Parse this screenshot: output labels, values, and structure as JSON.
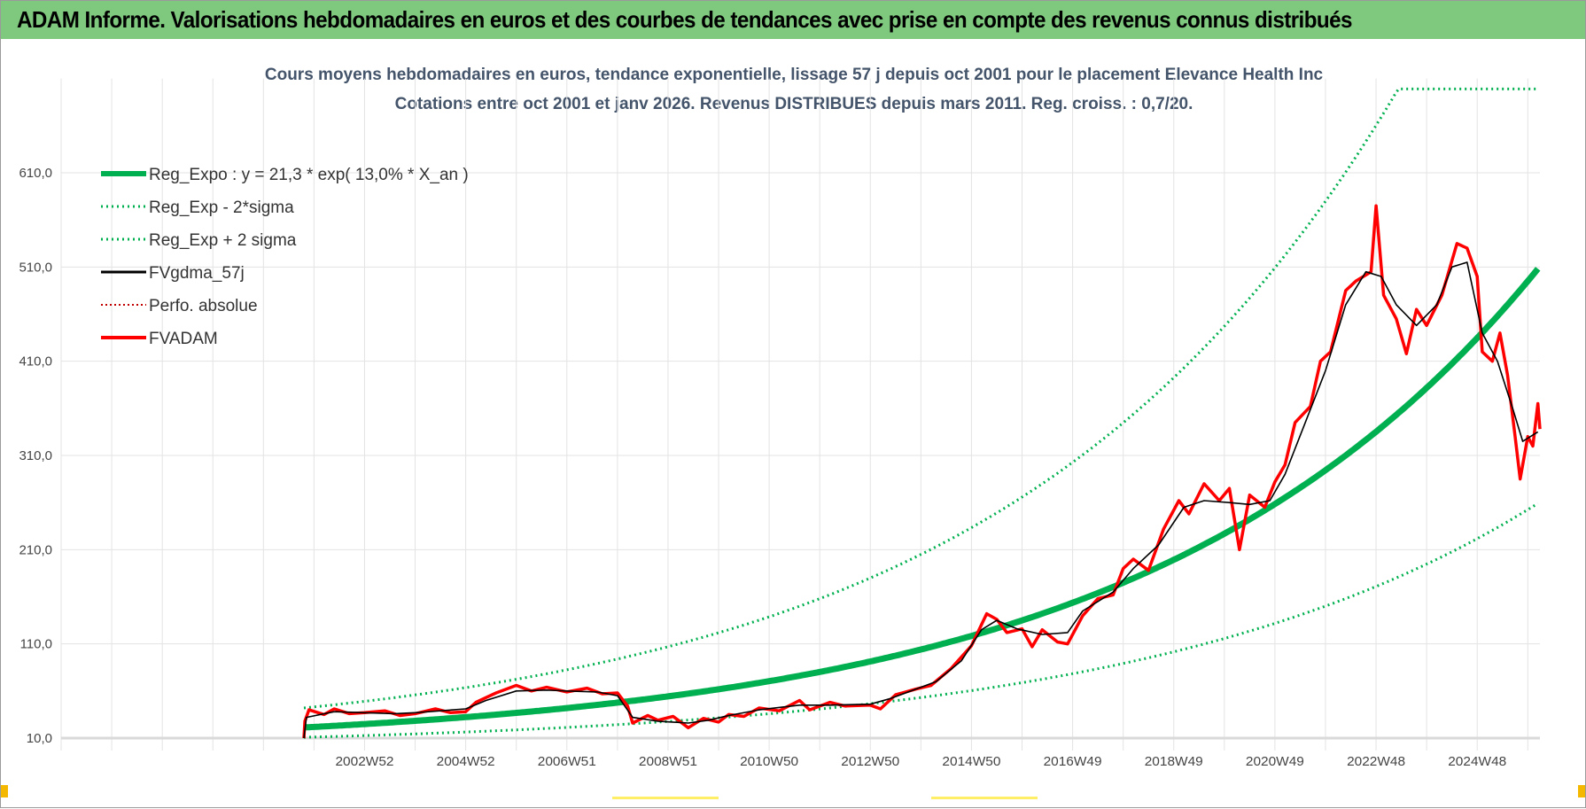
{
  "header": {
    "title": "ADAM Informe. Valorisations hebdomadaires en euros et des courbes de tendances avec prise en compte des revenus connus distribués"
  },
  "chart_data": {
    "type": "line",
    "title": [
      "Cours moyens hebdomadaires en euros, tendance exponentielle, lissage 57 j depuis oct 2001 pour le placement Elevance Health Inc",
      "Cotations entre oct 2001 et janv 2026. Revenus DISTRIBUES depuis mars 2011. Reg. croiss. : 0,7/20."
    ],
    "xlabel": "",
    "ylabel": "",
    "xlim": [
      1997.0,
      2026.24
    ],
    "ylim": [
      10,
      710
    ],
    "yticks": [
      "10,0",
      "110,0",
      "210,0",
      "310,0",
      "410,0",
      "510,0",
      "610,0"
    ],
    "ytick_values": [
      10,
      110,
      210,
      310,
      410,
      510,
      610
    ],
    "xticks": [
      "2002W52",
      "2004W52",
      "2006W51",
      "2008W51",
      "2010W50",
      "2012W50",
      "2014W50",
      "2016W49",
      "2018W49",
      "2020W49",
      "2022W48",
      "2024W48"
    ],
    "xtick_years": [
      2003,
      2005,
      2007,
      2009,
      2011,
      2013,
      2015,
      2017,
      2019,
      2021,
      2023,
      2025
    ],
    "grid": true,
    "legend_position": "top-left",
    "regression": {
      "a": 21.3,
      "rate": 0.13,
      "start_year": 2001.8,
      "end_year": 2026.2,
      "sigma_factor_low": 0.51,
      "sigma_factor_high": 1.97,
      "cap": 699
    },
    "series": [
      {
        "name": "Reg_Expo : y = 21,3 * exp( 13,0% *  X_an )",
        "color": "#00b050",
        "style": "solid-thick"
      },
      {
        "name": "Reg_Exp - 2*sigma",
        "color": "#00b050",
        "style": "dotted"
      },
      {
        "name": "Reg_Exp + 2 sigma",
        "color": "#00b050",
        "style": "dotted"
      },
      {
        "name": "FVgdma_57j",
        "color": "#000000",
        "style": "solid",
        "points": [
          [
            2001.8,
            10
          ],
          [
            2001.85,
            32
          ],
          [
            2002.4,
            38
          ],
          [
            2003,
            37
          ],
          [
            2003.6,
            36
          ],
          [
            2004,
            37
          ],
          [
            2004.5,
            39
          ],
          [
            2005,
            41
          ],
          [
            2005.4,
            50
          ],
          [
            2006,
            60
          ],
          [
            2006.6,
            61
          ],
          [
            2007,
            60
          ],
          [
            2007.6,
            59
          ],
          [
            2008,
            55
          ],
          [
            2008.3,
            32
          ],
          [
            2008.8,
            28
          ],
          [
            2009.4,
            26
          ],
          [
            2009.8,
            29
          ],
          [
            2010.2,
            34
          ],
          [
            2010.8,
            40
          ],
          [
            2011.6,
            45
          ],
          [
            2012.2,
            45
          ],
          [
            2013,
            46
          ],
          [
            2013.4,
            52
          ],
          [
            2013.9,
            62
          ],
          [
            2014.3,
            70
          ],
          [
            2014.8,
            92
          ],
          [
            2015.2,
            125
          ],
          [
            2015.5,
            135
          ],
          [
            2015.9,
            126
          ],
          [
            2016.4,
            120
          ],
          [
            2016.9,
            122
          ],
          [
            2017.2,
            145
          ],
          [
            2017.8,
            165
          ],
          [
            2018.2,
            190
          ],
          [
            2018.7,
            215
          ],
          [
            2019.2,
            255
          ],
          [
            2019.6,
            262
          ],
          [
            2020.1,
            260
          ],
          [
            2020.5,
            258
          ],
          [
            2020.9,
            262
          ],
          [
            2021.2,
            290
          ],
          [
            2021.6,
            345
          ],
          [
            2022.0,
            400
          ],
          [
            2022.4,
            470
          ],
          [
            2022.8,
            505
          ],
          [
            2023.1,
            500
          ],
          [
            2023.4,
            470
          ],
          [
            2023.8,
            448
          ],
          [
            2024.2,
            470
          ],
          [
            2024.5,
            510
          ],
          [
            2024.8,
            515
          ],
          [
            2025.1,
            440
          ],
          [
            2025.4,
            410
          ],
          [
            2025.7,
            360
          ],
          [
            2025.9,
            325
          ],
          [
            2026.2,
            335
          ]
        ]
      },
      {
        "name": "Perfo. absolue",
        "color": "#c00000",
        "style": "dotted",
        "points": []
      },
      {
        "name": "FVADAM",
        "color": "#ff0000",
        "style": "solid-thick",
        "points": [
          [
            2001.8,
            10
          ],
          [
            2001.82,
            28
          ],
          [
            2001.9,
            40
          ],
          [
            2002.2,
            35
          ],
          [
            2002.4,
            41
          ],
          [
            2002.7,
            36
          ],
          [
            2003,
            37
          ],
          [
            2003.4,
            39
          ],
          [
            2003.7,
            34
          ],
          [
            2004,
            36
          ],
          [
            2004.4,
            41
          ],
          [
            2004.7,
            37
          ],
          [
            2005,
            38
          ],
          [
            2005.2,
            48
          ],
          [
            2005.6,
            58
          ],
          [
            2006,
            66
          ],
          [
            2006.3,
            60
          ],
          [
            2006.6,
            64
          ],
          [
            2007,
            59
          ],
          [
            2007.4,
            63
          ],
          [
            2007.7,
            57
          ],
          [
            2008,
            58
          ],
          [
            2008.2,
            44
          ],
          [
            2008.3,
            26
          ],
          [
            2008.6,
            34
          ],
          [
            2008.8,
            29
          ],
          [
            2009.1,
            33
          ],
          [
            2009.4,
            21
          ],
          [
            2009.7,
            31
          ],
          [
            2010,
            27
          ],
          [
            2010.2,
            35
          ],
          [
            2010.5,
            33
          ],
          [
            2010.8,
            42
          ],
          [
            2011.2,
            39
          ],
          [
            2011.6,
            50
          ],
          [
            2011.8,
            40
          ],
          [
            2012.2,
            48
          ],
          [
            2012.5,
            44
          ],
          [
            2013,
            45
          ],
          [
            2013.2,
            41
          ],
          [
            2013.5,
            56
          ],
          [
            2013.9,
            62
          ],
          [
            2014.2,
            66
          ],
          [
            2014.6,
            84
          ],
          [
            2015,
            108
          ],
          [
            2015.3,
            142
          ],
          [
            2015.5,
            136
          ],
          [
            2015.7,
            122
          ],
          [
            2016.0,
            126
          ],
          [
            2016.2,
            107
          ],
          [
            2016.4,
            125
          ],
          [
            2016.7,
            112
          ],
          [
            2016.9,
            110
          ],
          [
            2017.2,
            140
          ],
          [
            2017.5,
            158
          ],
          [
            2017.8,
            162
          ],
          [
            2018.0,
            190
          ],
          [
            2018.2,
            200
          ],
          [
            2018.5,
            188
          ],
          [
            2018.8,
            232
          ],
          [
            2019.1,
            262
          ],
          [
            2019.3,
            248
          ],
          [
            2019.6,
            280
          ],
          [
            2019.9,
            262
          ],
          [
            2020.1,
            275
          ],
          [
            2020.3,
            210
          ],
          [
            2020.5,
            268
          ],
          [
            2020.8,
            255
          ],
          [
            2021.0,
            282
          ],
          [
            2021.2,
            300
          ],
          [
            2021.4,
            345
          ],
          [
            2021.7,
            362
          ],
          [
            2021.9,
            410
          ],
          [
            2022.1,
            420
          ],
          [
            2022.4,
            485
          ],
          [
            2022.6,
            495
          ],
          [
            2022.9,
            505
          ],
          [
            2023.0,
            575
          ],
          [
            2023.15,
            480
          ],
          [
            2023.4,
            455
          ],
          [
            2023.6,
            418
          ],
          [
            2023.8,
            465
          ],
          [
            2024.0,
            448
          ],
          [
            2024.3,
            480
          ],
          [
            2024.6,
            535
          ],
          [
            2024.8,
            530
          ],
          [
            2025.0,
            500
          ],
          [
            2025.1,
            420
          ],
          [
            2025.3,
            410
          ],
          [
            2025.45,
            440
          ],
          [
            2025.6,
            395
          ],
          [
            2025.75,
            330
          ],
          [
            2025.85,
            285
          ],
          [
            2026.0,
            330
          ],
          [
            2026.1,
            320
          ],
          [
            2026.2,
            365
          ],
          [
            2026.24,
            338
          ]
        ]
      }
    ]
  }
}
